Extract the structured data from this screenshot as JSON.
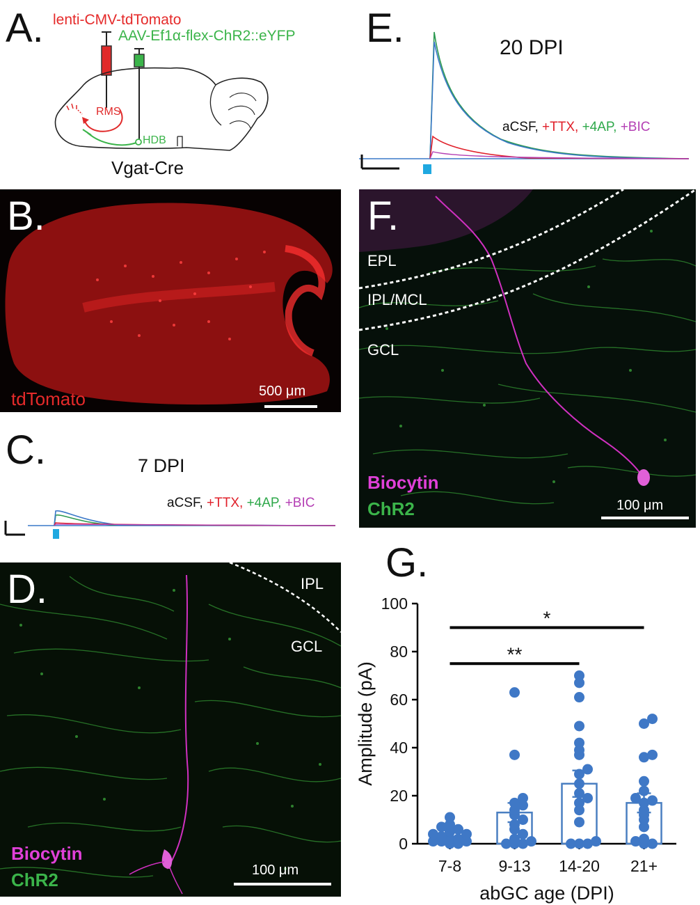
{
  "panels": {
    "a": {
      "letter": "A.",
      "vector1": "lenti-CMV-tdTomato",
      "vector2": "AAV-Ef1α-flex-ChR2::eYFP",
      "rms": "RMS",
      "hdb": "HDB",
      "mouse_line": "Vgat-Cre",
      "colors": {
        "tdtomato": "#e52a2a",
        "chr2": "#3bb44a"
      }
    },
    "b": {
      "letter": "B.",
      "label": "tdTomato",
      "scale": "500 μm"
    },
    "c": {
      "letter": "C.",
      "title": "7 DPI",
      "legend": {
        "acsf": "aCSF,",
        "ttx": "+TTX,",
        "ap4": "+4AP,",
        "bic": "+BIC"
      }
    },
    "d": {
      "letter": "D.",
      "ipl": "IPL",
      "gcl": "GCL",
      "label1": "Biocytin",
      "label2": "ChR2",
      "scale": "100 μm"
    },
    "e": {
      "letter": "E.",
      "title": "20 DPI",
      "legend": {
        "acsf": "aCSF,",
        "ttx": "+TTX,",
        "ap4": "+4AP,",
        "bic": "+BIC"
      }
    },
    "f": {
      "letter": "F.",
      "epl": "EPL",
      "iplmcl": "IPL/MCL",
      "gcl": "GCL",
      "label1": "Biocytin",
      "label2": "ChR2",
      "scale": "100 μm"
    },
    "g": {
      "letter": "G."
    }
  },
  "legend_colors": {
    "acsf": "#111111",
    "ttx": "#e0202a",
    "ap4": "#2ea84a",
    "bic": "#b43fb4"
  },
  "stim_color": "#1fa8e0",
  "chart_data": {
    "type": "bar",
    "xlabel": "abGC age (DPI)",
    "ylabel": "Amplitude (pA)",
    "ylim": [
      0,
      100
    ],
    "yticks": [
      0,
      20,
      40,
      60,
      80,
      100
    ],
    "categories": [
      "7-8",
      "9-13",
      "14-20",
      "21+"
    ],
    "values": [
      2,
      13,
      25,
      17
    ],
    "sem": [
      1,
      4,
      5.5,
      4
    ],
    "points": [
      [
        0,
        0,
        1,
        1,
        1,
        2,
        2,
        3,
        4,
        4,
        5,
        6,
        7,
        8,
        11
      ],
      [
        0,
        0,
        0,
        1,
        2,
        4,
        6,
        8,
        10,
        12,
        14,
        16,
        17,
        19,
        37,
        63
      ],
      [
        0,
        0,
        0,
        1,
        9,
        14,
        17,
        19,
        21,
        25,
        29,
        31,
        37,
        39,
        42,
        49,
        61,
        67,
        70
      ],
      [
        0,
        0,
        1,
        2,
        7,
        10,
        12,
        14,
        17,
        18,
        19,
        22,
        26,
        36,
        37,
        50,
        52
      ]
    ],
    "significance": [
      {
        "from": "7-8",
        "to": "14-20",
        "label": "**"
      },
      {
        "from": "7-8",
        "to": "21+",
        "label": "*"
      }
    ],
    "colors": {
      "bar_edge": "#4a7fc1",
      "points": "#3f78c6",
      "sig_bar": "#000000"
    }
  }
}
